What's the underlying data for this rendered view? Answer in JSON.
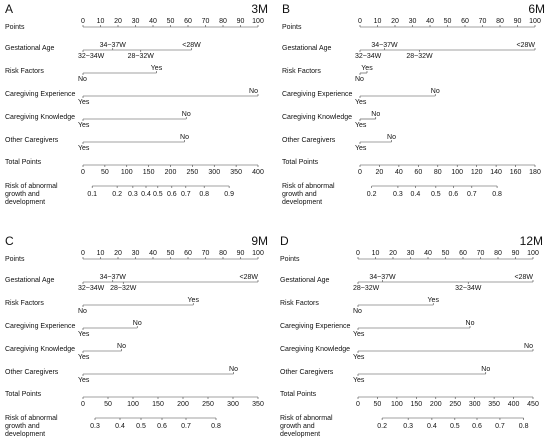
{
  "chart_data": [
    {
      "type": "nomogram",
      "panel": "A",
      "title": "3M",
      "points": {
        "name": "Points",
        "lim": [
          0,
          100
        ],
        "ticks": [
          0,
          10,
          20,
          30,
          40,
          50,
          60,
          70,
          80,
          90,
          100
        ]
      },
      "variables": [
        {
          "name": "Gestational Age",
          "levels": [
            {
              "label": "32~34W",
              "points": 0,
              "position": "below"
            },
            {
              "label": "34~37W",
              "points": 17,
              "position": "above"
            },
            {
              "label": "28~32W",
              "points": 33,
              "position": "below"
            },
            {
              "label": "<28W",
              "points": 62,
              "position": "above"
            }
          ]
        },
        {
          "name": "Risk Factors",
          "levels": [
            {
              "label": "No",
              "points": 0,
              "position": "below"
            },
            {
              "label": "Yes",
              "points": 42,
              "position": "above"
            }
          ]
        },
        {
          "name": "Caregiving Experience",
          "levels": [
            {
              "label": "Yes",
              "points": 0,
              "position": "below"
            },
            {
              "label": "No",
              "points": 100,
              "position": "above"
            }
          ]
        },
        {
          "name": "Caregiving Knowledge",
          "levels": [
            {
              "label": "Yes",
              "points": 0,
              "position": "below"
            },
            {
              "label": "No",
              "points": 59,
              "position": "above"
            }
          ]
        },
        {
          "name": "Other Caregivers",
          "levels": [
            {
              "label": "Yes",
              "points": 0,
              "position": "below"
            },
            {
              "label": "No",
              "points": 58,
              "position": "above"
            }
          ]
        }
      ],
      "total": {
        "name": "Total Points",
        "lim": [
          0,
          400
        ],
        "ticks": [
          0,
          50,
          100,
          150,
          200,
          250,
          300,
          350,
          400
        ]
      },
      "risk": {
        "name_lines": [
          "Risk of abnormal",
          "growth and",
          "development"
        ],
        "ticks": [
          {
            "value": 0.1,
            "label": "0.1",
            "total_points": 21
          },
          {
            "value": 0.2,
            "label": "0.2",
            "total_points": 78
          },
          {
            "value": 0.3,
            "label": "0.3",
            "total_points": 114
          },
          {
            "value": 0.4,
            "label": "0.4",
            "total_points": 144
          },
          {
            "value": 0.5,
            "label": "0.5",
            "total_points": 171
          },
          {
            "value": 0.6,
            "label": "0.6",
            "total_points": 203
          },
          {
            "value": 0.7,
            "label": "0.7",
            "total_points": 235
          },
          {
            "value": 0.8,
            "label": "0.8",
            "total_points": 277
          },
          {
            "value": 0.9,
            "label": "0.9",
            "total_points": 334
          }
        ]
      }
    },
    {
      "type": "nomogram",
      "panel": "B",
      "title": "6M",
      "points": {
        "name": "Points",
        "lim": [
          0,
          100
        ],
        "ticks": [
          0,
          10,
          20,
          30,
          40,
          50,
          60,
          70,
          80,
          90,
          100
        ]
      },
      "variables": [
        {
          "name": "Gestational Age",
          "levels": [
            {
              "label": "32~34W",
              "points": 0,
              "position": "below"
            },
            {
              "label": "34~37W",
              "points": 14,
              "position": "above"
            },
            {
              "label": "28~32W",
              "points": 34,
              "position": "below"
            },
            {
              "label": "<28W",
              "points": 100,
              "position": "above"
            }
          ]
        },
        {
          "name": "Risk Factors",
          "levels": [
            {
              "label": "No",
              "points": 0,
              "position": "below"
            },
            {
              "label": "Yes",
              "points": 4,
              "position": "above"
            }
          ]
        },
        {
          "name": "Caregiving Experience",
          "levels": [
            {
              "label": "Yes",
              "points": 0,
              "position": "below"
            },
            {
              "label": "No",
              "points": 43,
              "position": "above"
            }
          ]
        },
        {
          "name": "Caregiving Knowledge",
          "levels": [
            {
              "label": "Yes",
              "points": 0,
              "position": "below"
            },
            {
              "label": "No",
              "points": 9,
              "position": "above"
            }
          ]
        },
        {
          "name": "Other Caregivers",
          "levels": [
            {
              "label": "Yes",
              "points": 0,
              "position": "below"
            },
            {
              "label": "No",
              "points": 18,
              "position": "above"
            }
          ]
        }
      ],
      "total": {
        "name": "Total Points",
        "lim": [
          0,
          180
        ],
        "ticks": [
          0,
          20,
          40,
          60,
          80,
          100,
          120,
          140,
          160,
          180
        ]
      },
      "risk": {
        "name_lines": [
          "Risk of abnormal",
          "growth and",
          "development"
        ],
        "ticks": [
          {
            "value": 0.2,
            "label": "0.2",
            "total_points": 12
          },
          {
            "value": 0.3,
            "label": "0.3",
            "total_points": 39
          },
          {
            "value": 0.4,
            "label": "0.4",
            "total_points": 57
          },
          {
            "value": 0.5,
            "label": "0.5",
            "total_points": 78
          },
          {
            "value": 0.6,
            "label": "0.6",
            "total_points": 96
          },
          {
            "value": 0.7,
            "label": "0.7",
            "total_points": 115
          },
          {
            "value": 0.8,
            "label": "0.8",
            "total_points": 141
          }
        ]
      }
    },
    {
      "type": "nomogram",
      "panel": "C",
      "title": "9M",
      "points": {
        "name": "Points",
        "lim": [
          0,
          100
        ],
        "ticks": [
          0,
          10,
          20,
          30,
          40,
          50,
          60,
          70,
          80,
          90,
          100
        ]
      },
      "variables": [
        {
          "name": "Gestational Age",
          "levels": [
            {
              "label": "32~34W",
              "points": 0,
              "position": "below"
            },
            {
              "label": "34~37W",
              "points": 17,
              "position": "above"
            },
            {
              "label": "28~32W",
              "points": 23,
              "position": "below"
            },
            {
              "label": "<28W",
              "points": 100,
              "position": "above"
            }
          ]
        },
        {
          "name": "Risk Factors",
          "levels": [
            {
              "label": "No",
              "points": 0,
              "position": "below"
            },
            {
              "label": "Yes",
              "points": 63,
              "position": "above"
            }
          ]
        },
        {
          "name": "Caregiving Experience",
          "levels": [
            {
              "label": "Yes",
              "points": 0,
              "position": "below"
            },
            {
              "label": "No",
              "points": 31,
              "position": "above"
            }
          ]
        },
        {
          "name": "Caregiving Knowledge",
          "levels": [
            {
              "label": "Yes",
              "points": 0,
              "position": "below"
            },
            {
              "label": "No",
              "points": 22,
              "position": "above"
            }
          ]
        },
        {
          "name": "Other Caregivers",
          "levels": [
            {
              "label": "Yes",
              "points": 0,
              "position": "below"
            },
            {
              "label": "No",
              "points": 86,
              "position": "above"
            }
          ]
        }
      ],
      "total": {
        "name": "Total Points",
        "lim": [
          0,
          350
        ],
        "ticks": [
          0,
          50,
          100,
          150,
          200,
          250,
          300,
          350
        ]
      },
      "risk": {
        "name_lines": [
          "Risk of abnormal",
          "growth and",
          "development"
        ],
        "ticks": [
          {
            "value": 0.3,
            "label": "0.3",
            "total_points": 24
          },
          {
            "value": 0.4,
            "label": "0.4",
            "total_points": 74
          },
          {
            "value": 0.5,
            "label": "0.5",
            "total_points": 116
          },
          {
            "value": 0.6,
            "label": "0.6",
            "total_points": 158
          },
          {
            "value": 0.7,
            "label": "0.7",
            "total_points": 206
          },
          {
            "value": 0.8,
            "label": "0.8",
            "total_points": 266
          }
        ]
      }
    },
    {
      "type": "nomogram",
      "panel": "D",
      "title": "12M",
      "points": {
        "name": "Points",
        "lim": [
          0,
          100
        ],
        "ticks": [
          0,
          10,
          20,
          30,
          40,
          50,
          60,
          70,
          80,
          90,
          100
        ]
      },
      "variables": [
        {
          "name": "Gestational Age",
          "levels": [
            {
              "label": "28~32W",
              "points": 0,
              "position": "below"
            },
            {
              "label": "34~37W",
              "points": 14,
              "position": "above"
            },
            {
              "label": "32~34W",
              "points": 63,
              "position": "below"
            },
            {
              "label": "<28W",
              "points": 100,
              "position": "above"
            }
          ]
        },
        {
          "name": "Risk Factors",
          "levels": [
            {
              "label": "No",
              "points": 0,
              "position": "below"
            },
            {
              "label": "Yes",
              "points": 43,
              "position": "above"
            }
          ]
        },
        {
          "name": "Caregiving Experience",
          "levels": [
            {
              "label": "Yes",
              "points": 0,
              "position": "below"
            },
            {
              "label": "No",
              "points": 64,
              "position": "above"
            }
          ]
        },
        {
          "name": "Caregiving Knowledge",
          "levels": [
            {
              "label": "Yes",
              "points": 0,
              "position": "below"
            },
            {
              "label": "No",
              "points": 100,
              "position": "above"
            }
          ]
        },
        {
          "name": "Other Caregivers",
          "levels": [
            {
              "label": "Yes",
              "points": 0,
              "position": "below"
            },
            {
              "label": "No",
              "points": 73,
              "position": "above"
            }
          ]
        }
      ],
      "total": {
        "name": "Total Points",
        "lim": [
          0,
          450
        ],
        "ticks": [
          0,
          50,
          100,
          150,
          200,
          250,
          300,
          350,
          400,
          450
        ]
      },
      "risk": {
        "name_lines": [
          "Risk of abnormal",
          "growth and",
          "development"
        ],
        "ticks": [
          {
            "value": 0.2,
            "label": "0.2",
            "total_points": 62
          },
          {
            "value": 0.3,
            "label": "0.3",
            "total_points": 129
          },
          {
            "value": 0.4,
            "label": "0.4",
            "total_points": 190
          },
          {
            "value": 0.5,
            "label": "0.5",
            "total_points": 249
          },
          {
            "value": 0.6,
            "label": "0.6",
            "total_points": 306
          },
          {
            "value": 0.7,
            "label": "0.7",
            "total_points": 365
          },
          {
            "value": 0.8,
            "label": "0.8",
            "total_points": 426
          }
        ]
      }
    }
  ]
}
